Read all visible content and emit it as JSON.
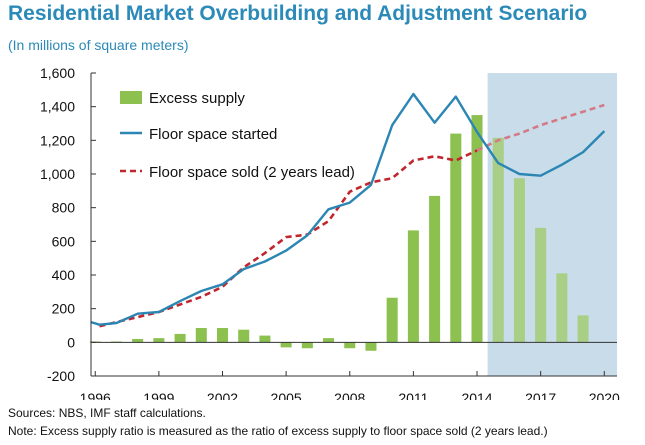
{
  "header": {
    "title": "Residential Market Overbuilding and Adjustment Scenario",
    "subtitle": "(In millions of square meters)"
  },
  "footer": {
    "sources": "Sources: NBS, IMF staff calculations.",
    "note": "Note: Excess supply ratio is measured as the ratio of excess supply to floor space sold (2 years lead.)"
  },
  "colors": {
    "bar": "#8cc04f",
    "bar_projection": "#a9cf86",
    "started": "#2b86b4",
    "sold": "#c0262d",
    "sold_projection": "#d47a86",
    "shade": "#c9dce9",
    "axis": "#333333"
  },
  "chart_data": {
    "type": "bar",
    "title": "Residential Market Overbuilding and Adjustment Scenario",
    "subtitle": "(In millions of square meters)",
    "xlabel": "",
    "ylabel": "",
    "ylim": [
      -200,
      1600
    ],
    "yticks": [
      -200,
      0,
      200,
      400,
      600,
      800,
      1000,
      1200,
      1400,
      1600
    ],
    "ytick_labels": [
      "-200",
      "0",
      "200",
      "400",
      "600",
      "800",
      "1,000",
      "1,200",
      "1,400",
      "1,600"
    ],
    "xlim": [
      1995.8,
      2020.6
    ],
    "xticks": [
      1996,
      1999,
      2002,
      2005,
      2008,
      2011,
      2014,
      2017,
      2020
    ],
    "xtick_labels": [
      "1996",
      "1999",
      "2002",
      "2005",
      "2008",
      "2011",
      "2014",
      "2017",
      "2020"
    ],
    "grid": false,
    "legend_position": "top-left",
    "projection_start": 2014.5,
    "series": [
      {
        "name": "Excess supply",
        "kind": "bar",
        "x": [
          1996,
          1997,
          1998,
          1999,
          2000,
          2001,
          2002,
          2003,
          2004,
          2005,
          2006,
          2007,
          2008,
          2009,
          2010,
          2011,
          2012,
          2013,
          2014,
          2015,
          2016,
          2017,
          2018,
          2019
        ],
        "values": [
          5,
          5,
          20,
          25,
          50,
          85,
          85,
          75,
          40,
          -30,
          -35,
          25,
          -35,
          -50,
          265,
          665,
          870,
          1240,
          1350,
          1215,
          975,
          680,
          410,
          160
        ]
      },
      {
        "name": "Floor space started",
        "kind": "line",
        "x": [
          1995.8,
          1996.2,
          1997,
          1998,
          1999,
          2000,
          2001,
          2002,
          2003,
          2004,
          2005,
          2006,
          2007,
          2008,
          2009,
          2010,
          2011,
          2012,
          2013,
          2014,
          2015,
          2016,
          2017,
          2018,
          2019,
          2020
        ],
        "values": [
          120,
          105,
          115,
          170,
          180,
          245,
          305,
          345,
          435,
          480,
          545,
          635,
          790,
          830,
          935,
          1290,
          1475,
          1305,
          1460,
          1250,
          1065,
          1000,
          990,
          1055,
          1130,
          1255
        ]
      },
      {
        "name": "Floor space sold (2 years lead)",
        "kind": "dashed-line",
        "x": [
          1996.2,
          1997,
          1998,
          1999,
          2000,
          2001,
          2002,
          2003,
          2004,
          2005,
          2006,
          2007,
          2008,
          2009,
          2010,
          2011,
          2012,
          2013,
          2014,
          2015,
          2016,
          2017,
          2018,
          2019,
          2020
        ],
        "values": [
          95,
          120,
          150,
          180,
          225,
          270,
          330,
          445,
          530,
          625,
          640,
          720,
          895,
          950,
          975,
          1080,
          1105,
          1080,
          1140,
          1200,
          1240,
          1290,
          1330,
          1370,
          1410
        ]
      }
    ]
  }
}
